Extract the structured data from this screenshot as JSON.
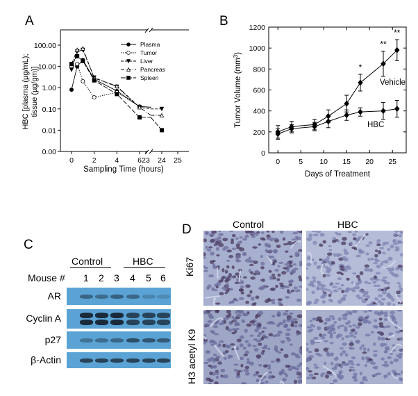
{
  "panels": {
    "a": {
      "letter": "A"
    },
    "b": {
      "letter": "B"
    },
    "c": {
      "letter": "C"
    },
    "d": {
      "letter": "D"
    }
  },
  "chart_data": [
    {
      "type": "line",
      "panel": "A",
      "title": "",
      "xlabel": "Sampling Time (hours)",
      "ylabel_line1": "HBC [plasma (µg/mL);",
      "ylabel_line2": "tissue (µg/gm)]",
      "y_scale": "log",
      "x_tick_labels": [
        "0",
        "2",
        "4",
        "6",
        "23",
        "24",
        "25"
      ],
      "y_tick_labels": [
        "100.00",
        "10.00",
        "1.00",
        "0.10",
        "0.01",
        "0.00"
      ],
      "y_ticks": [
        100,
        10,
        1,
        0.1,
        0.01,
        0.001
      ],
      "legend_position": "top-right",
      "axis_break": true,
      "series": [
        {
          "name": "Plasma",
          "marker": "circle-filled",
          "dash": "solid",
          "x": [
            0,
            0.5,
            1,
            2,
            4,
            6,
            7
          ],
          "y": [
            0.8,
            10,
            20,
            2.5,
            0.7,
            0.13,
            0.12
          ]
        },
        {
          "name": "Tumor",
          "marker": "circle-open",
          "dash": "dotted",
          "x": [
            0,
            0.5,
            1,
            2,
            4,
            6,
            7
          ],
          "y": [
            10,
            13,
            2,
            0.35,
            0.6,
            0.13,
            0.12
          ]
        },
        {
          "name": "Liver",
          "marker": "triangle-down-filled",
          "dash": "dashed",
          "x": [
            0,
            0.5,
            1,
            2,
            4,
            6,
            7,
            24
          ],
          "y": [
            7,
            50,
            60,
            3,
            1.1,
            0.12,
            0.1,
            0.1
          ]
        },
        {
          "name": "Pancreas",
          "marker": "triangle-up-open",
          "dash": "dashdot",
          "x": [
            0,
            0.5,
            1,
            2,
            4,
            6,
            7,
            24
          ],
          "y": [
            13,
            60,
            70,
            2.8,
            1.2,
            0.12,
            0.05,
            0.05
          ]
        },
        {
          "name": "Spleen",
          "marker": "square-filled",
          "dash": "longdash",
          "x": [
            0,
            0.5,
            1,
            2,
            4,
            6,
            7,
            24
          ],
          "y": [
            13,
            30,
            18,
            2.2,
            0.5,
            0.04,
            0.04,
            0.01
          ]
        }
      ]
    },
    {
      "type": "line",
      "panel": "B",
      "title": "",
      "xlabel": "Days of Treatment",
      "ylabel": "Tumor Volume (mm",
      "ylabel_sup": "3",
      "ylabel_end": ")",
      "xlim": [
        -2,
        28
      ],
      "ylim": [
        0,
        1200
      ],
      "x_ticks": [
        0,
        5,
        10,
        15,
        20,
        25
      ],
      "y_ticks": [
        0,
        200,
        400,
        600,
        800,
        1000,
        1200
      ],
      "series": [
        {
          "name": "Vehicle",
          "marker": "diamond-filled",
          "x": [
            0,
            3,
            8,
            11,
            15,
            18,
            23,
            26
          ],
          "y": [
            200,
            250,
            270,
            350,
            470,
            670,
            850,
            980
          ],
          "err": [
            60,
            50,
            50,
            60,
            80,
            80,
            120,
            100
          ]
        },
        {
          "name": "HBC",
          "marker": "diamond-filled",
          "x": [
            0,
            3,
            8,
            11,
            15,
            18,
            23,
            26
          ],
          "y": [
            180,
            230,
            250,
            300,
            360,
            390,
            400,
            420
          ],
          "err": [
            50,
            40,
            40,
            60,
            50,
            40,
            80,
            80
          ]
        }
      ],
      "significance": [
        {
          "x": 18,
          "label": "*"
        },
        {
          "x": 23,
          "label": "**"
        },
        {
          "x": 26,
          "label": "**"
        }
      ]
    }
  ],
  "western": {
    "group_control": "Control",
    "group_hbc": "HBC",
    "mouse_label": "Mouse #",
    "mice": [
      "1",
      "2",
      "3",
      "4",
      "5",
      "6"
    ],
    "rows": [
      {
        "label": "AR",
        "intensity": [
          0.5,
          0.45,
          0.55,
          0.5,
          0.25,
          0.2
        ]
      },
      {
        "label": "Cyclin A",
        "intensity": [
          1,
          1,
          1,
          0.8,
          0.8,
          0.8
        ]
      },
      {
        "label": "p27",
        "intensity": [
          0.4,
          0.45,
          0.5,
          0.7,
          0.65,
          0.6
        ]
      },
      {
        "label": "β-Actin",
        "intensity": [
          0.8,
          0.8,
          0.8,
          0.8,
          0.8,
          0.8
        ]
      }
    ]
  },
  "ihc": {
    "col_control": "Control",
    "col_hbc": "HBC",
    "row_ki67": "Ki67",
    "row_h3": "H3 acetyl K9"
  }
}
